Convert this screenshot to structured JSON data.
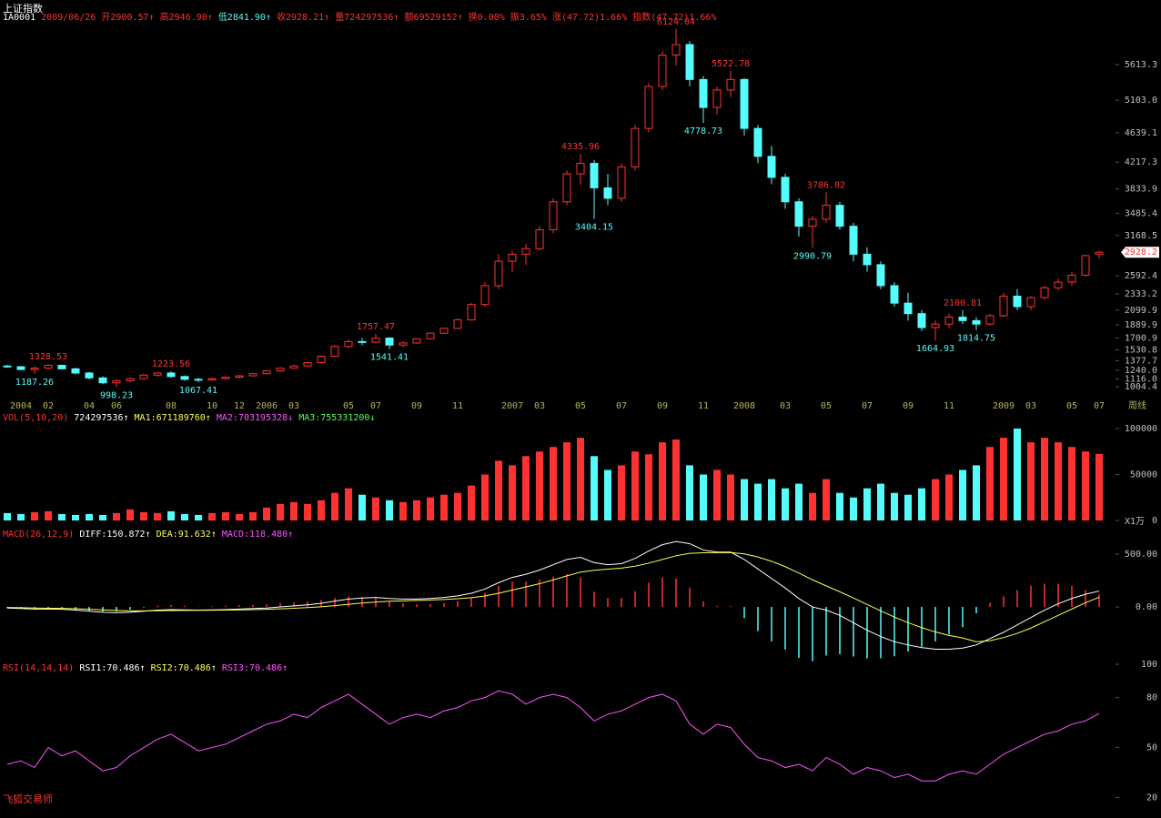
{
  "header": {
    "title": "上证指数",
    "segments": [
      {
        "text": "1A0001",
        "color": "#ffffff"
      },
      {
        "text": "2009/06/26",
        "color": "#ff3232"
      },
      {
        "text": "开2900.57↑",
        "color": "#ff3232"
      },
      {
        "text": "高2946.90↑",
        "color": "#ff3232"
      },
      {
        "text": "低2841.90↑",
        "color": "#54fcfc"
      },
      {
        "text": "收2928.21↑",
        "color": "#ff3232"
      },
      {
        "text": "量724297536↑",
        "color": "#ff3232"
      },
      {
        "text": "额69529152↑",
        "color": "#ff3232"
      },
      {
        "text": "换0.00%",
        "color": "#ff3232"
      },
      {
        "text": "振3.65%",
        "color": "#ff3232"
      },
      {
        "text": "涨(47.72)1.66%",
        "color": "#ff3232"
      },
      {
        "text": "指数(47.72)1.66%",
        "color": "#ff3232"
      }
    ]
  },
  "footer": "飞狐交易师",
  "chart_data": [
    {
      "type": "candlestick",
      "categories": [
        null,
        "2004",
        null,
        "02",
        null,
        null,
        "04",
        null,
        "06",
        null,
        null,
        null,
        "08",
        null,
        null,
        "10",
        null,
        "12",
        null,
        "2006",
        null,
        "03",
        null,
        null,
        null,
        "05",
        null,
        "07",
        null,
        null,
        "09",
        null,
        null,
        "11",
        null,
        null,
        null,
        "2007",
        null,
        "03",
        null,
        null,
        "05",
        null,
        null,
        "07",
        null,
        null,
        "09",
        null,
        null,
        "11",
        null,
        null,
        "2008",
        null,
        null,
        "03",
        null,
        null,
        "05",
        null,
        null,
        "07",
        null,
        null,
        "09",
        null,
        null,
        "11",
        null,
        null,
        null,
        "2009",
        null,
        "03",
        null,
        null,
        "05",
        null,
        "07"
      ],
      "x_unit": "周线",
      "open": [
        1300,
        1290,
        1250,
        1270,
        1310,
        1260,
        1200,
        1130,
        1060,
        1090,
        1120,
        1170,
        1200,
        1150,
        1110,
        1100,
        1120,
        1140,
        1160,
        1190,
        1230,
        1270,
        1300,
        1350,
        1440,
        1580,
        1650,
        1640,
        1700,
        1600,
        1630,
        1690,
        1770,
        1840,
        1960,
        2180,
        2450,
        2800,
        2900,
        2980,
        3250,
        3650,
        4050,
        4200,
        3850,
        3700,
        4150,
        4700,
        5300,
        5750,
        5900,
        5400,
        5000,
        5250,
        5400,
        4700,
        4300,
        4000,
        3650,
        3300,
        3400,
        3600,
        3300,
        2900,
        2750,
        2450,
        2200,
        2050,
        1850,
        1900,
        2000,
        1950,
        1900,
        2020,
        2300,
        2150,
        2280,
        2420,
        2500,
        2600,
        2900.57
      ],
      "high": [
        1315,
        1300,
        1290,
        1328.53,
        1320,
        1275,
        1215,
        1150,
        1110,
        1140,
        1190,
        1215,
        1223.56,
        1165,
        1130,
        1140,
        1150,
        1170,
        1200,
        1240,
        1280,
        1320,
        1360,
        1450,
        1600,
        1680,
        1700,
        1757.47,
        1710,
        1650,
        1700,
        1780,
        1850,
        1980,
        2200,
        2500,
        2900,
        2950,
        3050,
        3300,
        3700,
        4100,
        4335.96,
        4250,
        4050,
        4200,
        4750,
        5350,
        5800,
        6124.04,
        5950,
        5450,
        5300,
        5522.78,
        5420,
        4750,
        4450,
        4050,
        3700,
        3450,
        3786.02,
        3650,
        3350,
        3000,
        2800,
        2500,
        2350,
        2100,
        1950,
        2050,
        2100.81,
        2000,
        2050,
        2350,
        2400,
        2300,
        2450,
        2550,
        2650,
        2890,
        2946.9
      ],
      "low": [
        1275,
        1240,
        1187.26,
        1255,
        1250,
        1180,
        1110,
        1040,
        998.23,
        1070,
        1100,
        1150,
        1130,
        1090,
        1067.41,
        1090,
        1100,
        1120,
        1150,
        1180,
        1220,
        1260,
        1290,
        1340,
        1430,
        1550,
        1600,
        1630,
        1541.41,
        1570,
        1620,
        1680,
        1760,
        1830,
        1950,
        2150,
        2400,
        2650,
        2750,
        2950,
        3200,
        3600,
        3900,
        3404.15,
        3600,
        3650,
        4100,
        4650,
        5250,
        5600,
        5300,
        4778.73,
        4900,
        5150,
        4600,
        4200,
        3900,
        3550,
        3150,
        2990.79,
        3350,
        3250,
        2800,
        2650,
        2400,
        2150,
        1950,
        1800,
        1664.93,
        1850,
        1900,
        1814.75,
        1880,
        2000,
        2100,
        2100,
        2250,
        2380,
        2450,
        2580,
        2841.9
      ],
      "close": [
        1290,
        1250,
        1270,
        1310,
        1260,
        1200,
        1130,
        1060,
        1090,
        1120,
        1170,
        1200,
        1150,
        1110,
        1100,
        1120,
        1140,
        1160,
        1190,
        1230,
        1270,
        1300,
        1350,
        1440,
        1580,
        1650,
        1640,
        1700,
        1600,
        1630,
        1690,
        1770,
        1840,
        1960,
        2180,
        2450,
        2800,
        2900,
        2980,
        3250,
        3650,
        4050,
        4200,
        3850,
        3700,
        4150,
        4700,
        5300,
        5750,
        5900,
        5400,
        5000,
        5250,
        5400,
        4700,
        4300,
        4000,
        3650,
        3300,
        3400,
        3600,
        3300,
        2900,
        2750,
        2450,
        2200,
        2050,
        1850,
        1900,
        2000,
        1950,
        1900,
        2020,
        2300,
        2150,
        2280,
        2420,
        2500,
        2600,
        2880,
        2928.21
      ],
      "up_color": "#ff3232",
      "down_color": "#54fcfc",
      "annotations": [
        {
          "kind": "low",
          "index": 2
        },
        {
          "kind": "high",
          "index": 3
        },
        {
          "kind": "low",
          "index": 8
        },
        {
          "kind": "high",
          "index": 12
        },
        {
          "kind": "low",
          "index": 14
        },
        {
          "kind": "high",
          "index": 27
        },
        {
          "kind": "low",
          "index": 28
        },
        {
          "kind": "high",
          "index": 42
        },
        {
          "kind": "low",
          "index": 43
        },
        {
          "kind": "high",
          "index": 49
        },
        {
          "kind": "low",
          "index": 51
        },
        {
          "kind": "high",
          "index": 53
        },
        {
          "kind": "low",
          "index": 59
        },
        {
          "kind": "high",
          "index": 60
        },
        {
          "kind": "low",
          "index": 68
        },
        {
          "kind": "high",
          "index": 70
        },
        {
          "kind": "low",
          "index": 71
        }
      ],
      "ylim": [
        913,
        6147
      ],
      "yticks": [
        5613.3,
        {
          "value": 5103,
          "label": "5103.0"
        },
        4639.1,
        4217.3,
        3833.9,
        3485.4,
        3168.5,
        2592.4,
        2333.2,
        2099.9,
        1889.9,
        1700.9,
        1530.8,
        1377.7,
        {
          "value": 1240,
          "label": "1240.0"
        },
        {
          "value": 1116,
          "label": "1116.0"
        },
        1004.4
      ],
      "price_marker": 2928.2
    },
    {
      "type": "volume",
      "legend": [
        {
          "text": "VOL(5,10,20)",
          "color": "#ff3232"
        },
        {
          "text": "724297536↑",
          "color": "#ffffff"
        },
        {
          "text": "MA1:671189760↑",
          "color": "#ffff54"
        },
        {
          "text": "MA2:703195328↓",
          "color": "#ff54ff"
        },
        {
          "text": "MA3:755331200↓",
          "color": "#54ff54"
        }
      ],
      "values": [
        8000,
        7000,
        9000,
        10000,
        7000,
        6000,
        7000,
        6000,
        8000,
        12000,
        9000,
        8000,
        10000,
        7000,
        6000,
        8000,
        9000,
        7000,
        9000,
        14000,
        18000,
        20000,
        18000,
        22000,
        30000,
        35000,
        28000,
        25000,
        22000,
        20000,
        22000,
        25000,
        28000,
        30000,
        38000,
        50000,
        65000,
        60000,
        70000,
        75000,
        80000,
        85000,
        90000,
        70000,
        55000,
        60000,
        75000,
        72000,
        85000,
        88000,
        60000,
        50000,
        55000,
        50000,
        45000,
        40000,
        45000,
        35000,
        40000,
        30000,
        45000,
        30000,
        25000,
        35000,
        40000,
        30000,
        28000,
        35000,
        45000,
        50000,
        55000,
        60000,
        80000,
        90000,
        100000,
        85000,
        90000,
        85000,
        80000,
        75000,
        72429.7536
      ],
      "unit": "X1万",
      "ylim": [
        0,
        100000
      ],
      "yticks": [
        0,
        50000,
        100000
      ]
    },
    {
      "type": "macd",
      "legend": [
        {
          "text": "MACD(26,12,9)",
          "color": "#ff3232"
        },
        {
          "text": "DIFF:150.872↑",
          "color": "#ffffff"
        },
        {
          "text": "DEA:91.632↑",
          "color": "#ffff54"
        },
        {
          "text": "MACD:118.480↑",
          "color": "#ff54ff"
        }
      ],
      "series": [
        {
          "color": "#ffffff",
          "values": [
            -10,
            -15,
            -20,
            -20,
            -22,
            -30,
            -40,
            -50,
            -55,
            -50,
            -40,
            -30,
            -25,
            -28,
            -30,
            -28,
            -25,
            -20,
            -15,
            -10,
            0,
            10,
            20,
            35,
            55,
            75,
            85,
            90,
            80,
            75,
            75,
            80,
            90,
            105,
            130,
            170,
            230,
            280,
            310,
            350,
            400,
            450,
            470,
            420,
            400,
            410,
            460,
            530,
            590,
            620,
            600,
            540,
            520,
            520,
            450,
            360,
            270,
            180,
            80,
            0,
            -30,
            -80,
            -150,
            -220,
            -280,
            -330,
            -360,
            -385,
            -400,
            -400,
            -390,
            -360,
            -300,
            -240,
            -170,
            -100,
            -30,
            30,
            80,
            120,
            150.872
          ]
        },
        {
          "color": "#ffff54",
          "values": [
            -5,
            -7,
            -10,
            -12,
            -14,
            -17,
            -22,
            -28,
            -33,
            -37,
            -37,
            -36,
            -34,
            -33,
            -32,
            -31,
            -30,
            -28,
            -25,
            -22,
            -18,
            -12,
            -6,
            2,
            12,
            25,
            37,
            47,
            54,
            58,
            62,
            66,
            71,
            78,
            88,
            104,
            130,
            160,
            190,
            220,
            256,
            295,
            330,
            348,
            358,
            368,
            386,
            415,
            450,
            485,
            508,
            514,
            515,
            516,
            503,
            474,
            433,
            382,
            321,
            257,
            200,
            144,
            85,
            24,
            -37,
            -96,
            -149,
            -196,
            -237,
            -270,
            -294,
            -330,
            -320,
            -290,
            -250,
            -200,
            -140,
            -80,
            -20,
            40,
            91.632
          ]
        }
      ],
      "histogram": [
        -10,
        -16,
        -20,
        -16,
        -16,
        -26,
        -36,
        -44,
        -44,
        -26,
        -6,
        12,
        18,
        10,
        4,
        6,
        10,
        16,
        20,
        24,
        36,
        44,
        52,
        66,
        86,
        100,
        96,
        86,
        52,
        34,
        26,
        28,
        38,
        54,
        84,
        132,
        200,
        240,
        240,
        260,
        288,
        310,
        280,
        144,
        84,
        84,
        148,
        230,
        280,
        270,
        184,
        52,
        10,
        8,
        -106,
        -228,
        -326,
        -404,
        -482,
        -514,
        -460,
        -448,
        -470,
        -488,
        -486,
        -468,
        -422,
        -378,
        -326,
        -260,
        -192,
        -60,
        40,
        100,
        160,
        200,
        220,
        220,
        200,
        160,
        118.48
      ],
      "up_color": "#ff3232",
      "down_color": "#54fcfc",
      "ylim": [
        -560,
        630
      ],
      "yticks": [
        {
          "value": 500,
          "label": "500.00"
        },
        {
          "value": 0,
          "label": "0.00"
        }
      ]
    },
    {
      "type": "rsi",
      "legend": [
        {
          "text": "RSI(14,14,14)",
          "color": "#ff3232"
        },
        {
          "text": "RSI1:70.486↑",
          "color": "#ffffff"
        },
        {
          "text": "RSI2:70.486↑",
          "color": "#ffff54"
        },
        {
          "text": "RSI3:70.486↑",
          "color": "#ff54ff"
        }
      ],
      "series": [
        {
          "color": "#ff54ff",
          "values": [
            40,
            42,
            38,
            50,
            45,
            48,
            42,
            36,
            38,
            45,
            50,
            55,
            58,
            53,
            48,
            50,
            52,
            56,
            60,
            64,
            66,
            70,
            68,
            74,
            78,
            82,
            76,
            70,
            64,
            68,
            70,
            68,
            72,
            74,
            78,
            80,
            84,
            82,
            76,
            80,
            82,
            80,
            74,
            66,
            70,
            72,
            76,
            80,
            82,
            78,
            64,
            58,
            64,
            62,
            52,
            44,
            42,
            38,
            40,
            36,
            44,
            40,
            34,
            38,
            36,
            32,
            34,
            30,
            30,
            34,
            36,
            34,
            40,
            46,
            50,
            54,
            58,
            60,
            64,
            66,
            70.486
          ]
        }
      ],
      "ylim": [
        17,
        100
      ],
      "yticks": [
        20,
        50,
        80,
        100
      ]
    }
  ]
}
